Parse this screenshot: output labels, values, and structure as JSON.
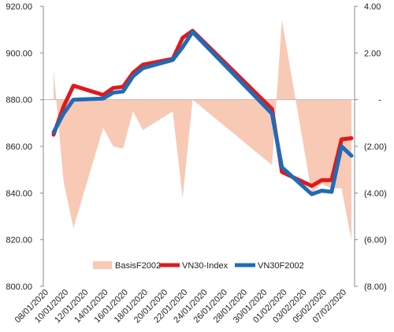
{
  "chart_data": {
    "type": "line",
    "title": "",
    "xlabel": "",
    "ylabel_left": "",
    "ylabel_right": "",
    "left_axis": {
      "range": [
        800,
        920
      ],
      "ticks": [
        800,
        820,
        840,
        860,
        880,
        900,
        920
      ],
      "tick_labels": [
        "800.00",
        "820.00",
        "840.00",
        "860.00",
        "880.00",
        "900.00",
        "920.00"
      ]
    },
    "right_axis": {
      "range": [
        -8,
        4
      ],
      "ticks": [
        -8,
        -6,
        -4,
        -2,
        0,
        2,
        4
      ],
      "tick_labels": [
        "(8.00)",
        "(6.00)",
        "(4.00)",
        "(2.00)",
        "-",
        "2.00",
        "4.00"
      ]
    },
    "x_axis": {
      "range": [
        "08/01/2020",
        "07/02/2020"
      ],
      "tick_labels": [
        "08/01/2020",
        "10/01/2020",
        "12/01/2020",
        "14/01/2020",
        "16/01/2020",
        "18/01/2020",
        "20/01/2020",
        "22/01/2020",
        "24/01/2020",
        "26/01/2020",
        "28/01/2020",
        "30/01/2020",
        "01/02/2020",
        "03/02/2020",
        "05/02/2020",
        "07/02/2020"
      ]
    },
    "grid": false,
    "legend_position": "bottom",
    "series": [
      {
        "name": "BasisF2002",
        "kind": "area",
        "axis": "right",
        "color": "#f8c9b5",
        "x": [
          "08/01/2020",
          "09/01/2020",
          "10/01/2020",
          "13/01/2020",
          "14/01/2020",
          "15/01/2020",
          "16/01/2020",
          "17/01/2020",
          "20/01/2020",
          "21/01/2020",
          "22/01/2020",
          "30/01/2020",
          "31/01/2020",
          "03/02/2020",
          "04/02/2020",
          "05/02/2020",
          "06/02/2020",
          "07/02/2020"
        ],
        "values": [
          1.3,
          -3.5,
          -5.5,
          -1.2,
          -2.0,
          -2.1,
          -0.5,
          -1.3,
          -0.5,
          -4.2,
          0.0,
          -2.8,
          3.4,
          -4.0,
          -3.6,
          -3.8,
          -3.8,
          -6.0
        ]
      },
      {
        "name": "VN30-Index",
        "kind": "line",
        "axis": "left",
        "color": "#e0191c",
        "x": [
          "08/01/2020",
          "09/01/2020",
          "10/01/2020",
          "13/01/2020",
          "14/01/2020",
          "15/01/2020",
          "16/01/2020",
          "17/01/2020",
          "20/01/2020",
          "21/01/2020",
          "22/01/2020",
          "30/01/2020",
          "31/01/2020",
          "03/02/2020",
          "04/02/2020",
          "05/02/2020",
          "06/02/2020",
          "07/02/2020"
        ],
        "values": [
          865,
          877,
          886,
          882,
          885,
          885.5,
          891.5,
          895,
          897.5,
          906.5,
          909.5,
          876,
          849,
          843,
          845.5,
          845.5,
          863,
          863.5
        ]
      },
      {
        "name": "VN30F2002",
        "kind": "line",
        "axis": "left",
        "color": "#1f6bb8",
        "x": [
          "08/01/2020",
          "09/01/2020",
          "10/01/2020",
          "13/01/2020",
          "14/01/2020",
          "15/01/2020",
          "16/01/2020",
          "17/01/2020",
          "20/01/2020",
          "21/01/2020",
          "22/01/2020",
          "30/01/2020",
          "31/01/2020",
          "03/02/2020",
          "04/02/2020",
          "05/02/2020",
          "06/02/2020",
          "07/02/2020"
        ],
        "values": [
          866,
          874,
          880,
          880.5,
          883,
          883.5,
          890,
          893.5,
          897,
          902.5,
          909,
          874,
          851,
          839.5,
          841,
          840.5,
          860,
          856
        ]
      }
    ]
  }
}
